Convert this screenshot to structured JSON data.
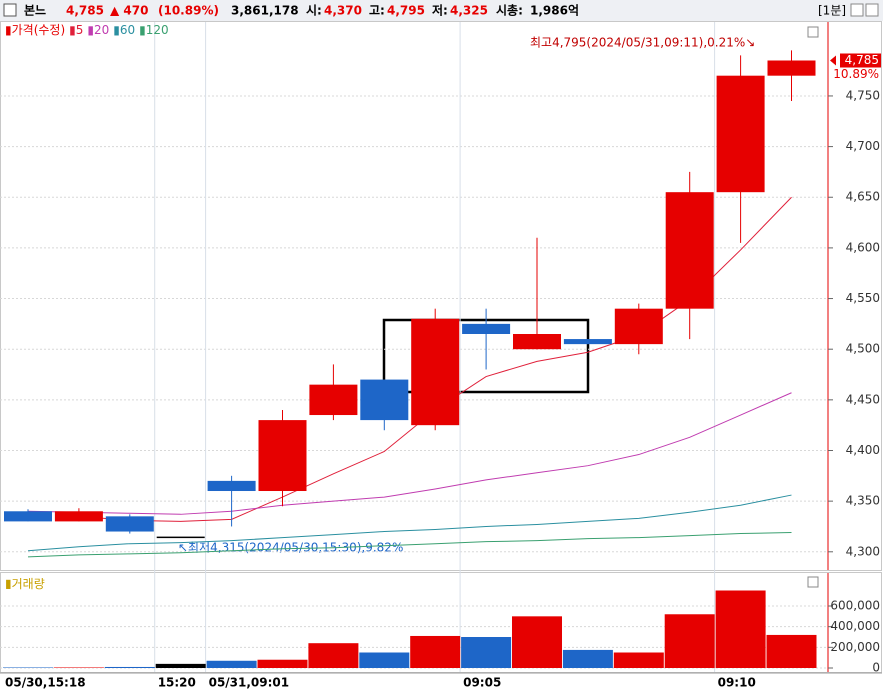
{
  "header": {
    "name": "본느",
    "price": "4,785",
    "change": "▲ 470",
    "change_pct": "(10.89%)",
    "volume": "3,861,178",
    "open_label": "시:",
    "open": "4,370",
    "high_label": "고:",
    "high": "4,795",
    "low_label": "저:",
    "low": "4,325",
    "cap_label": "시총:",
    "cap": "1,986억",
    "interval": "[1분]"
  },
  "chart_data": {
    "type": "candlestick",
    "categories": [
      "05/30,15:18",
      null,
      null,
      "15:20",
      "05/31,09:01",
      null,
      null,
      null,
      null,
      "09:05",
      null,
      null,
      null,
      null,
      "09:10",
      null
    ],
    "open": [
      4340,
      4330,
      4335,
      4315,
      4370,
      4360,
      4435,
      4470,
      4425,
      4525,
      4500,
      4510,
      4505,
      4540,
      4655,
      4770
    ],
    "high": [
      4342,
      4343,
      4337,
      4315,
      4375,
      4440,
      4485,
      4470,
      4540,
      4540,
      4610,
      4510,
      4545,
      4675,
      4790,
      4795
    ],
    "low": [
      4330,
      4330,
      4318,
      4315,
      4325,
      4345,
      4430,
      4420,
      4420,
      4480,
      4500,
      4505,
      4495,
      4510,
      4605,
      4745
    ],
    "close": [
      4330,
      4340,
      4320,
      4315,
      4360,
      4430,
      4465,
      4430,
      4530,
      4515,
      4515,
      4505,
      4540,
      4655,
      4770,
      4785
    ],
    "up_color": "#e60000",
    "down_color": "#1e66c8",
    "flat_color": "#000000",
    "legend_title": "가격(수정)",
    "series": [
      {
        "name": "5",
        "color": "#e0203a",
        "values": [
          null,
          4335,
          4331,
          4330,
          4332,
          4354,
          4377,
          4399,
          4440,
          4473,
          4488,
          4497,
          4514,
          4549,
          4598,
          4650
        ]
      },
      {
        "name": "20",
        "color": "#c03cb0",
        "values": [
          4340,
          4339,
          4338,
          4337,
          4340,
          4346,
          4350,
          4354,
          4362,
          4371,
          4378,
          4385,
          4396,
          4413,
          4435,
          4457
        ]
      },
      {
        "name": "60",
        "color": "#2a8fa0",
        "values": [
          4301,
          4305,
          4308,
          4309,
          4311,
          4314,
          4317,
          4320,
          4322,
          4325,
          4327,
          4330,
          4333,
          4339,
          4346,
          4356
        ]
      },
      {
        "name": "120",
        "color": "#3aa070",
        "values": [
          4295,
          4297,
          4298,
          4299,
          4301,
          4303,
          4304,
          4306,
          4308,
          4310,
          4311,
          4313,
          4314,
          4316,
          4318,
          4319
        ]
      }
    ],
    "ylim": [
      4284,
      4823
    ],
    "yticks": [
      {
        "value": 4300,
        "label": "4,300"
      },
      {
        "value": 4350,
        "label": "4,350"
      },
      {
        "value": 4400,
        "label": "4,400"
      },
      {
        "value": 4450,
        "label": "4,450"
      },
      {
        "value": 4500,
        "label": "4,500"
      },
      {
        "value": 4550,
        "label": "4,550"
      },
      {
        "value": 4600,
        "label": "4,600"
      },
      {
        "value": 4650,
        "label": "4,650"
      },
      {
        "value": 4700,
        "label": "4,700"
      },
      {
        "value": 4750,
        "label": "4,750"
      }
    ],
    "last_price": {
      "value": 4785,
      "label": "4,785"
    },
    "last_change": "10.89%",
    "high_note": "최고4,795(2024/05/31,09:11),0.21%↘",
    "low_note": "↖최저4,315(2024/05/30,15:30),9.82%",
    "grid": true,
    "volume_title": "거래량",
    "volume": [
      5000,
      5000,
      10000,
      40000,
      70000,
      80000,
      240000,
      150000,
      310000,
      300000,
      500000,
      175000,
      150000,
      520000,
      750000,
      320000
    ],
    "vlim": [
      0,
      900000
    ],
    "vticks": [
      0,
      {
        "value": 200000,
        "label": "200,000"
      },
      {
        "value": 400000,
        "label": "400,000"
      },
      {
        "value": 600000,
        "label": "600,000"
      }
    ]
  }
}
